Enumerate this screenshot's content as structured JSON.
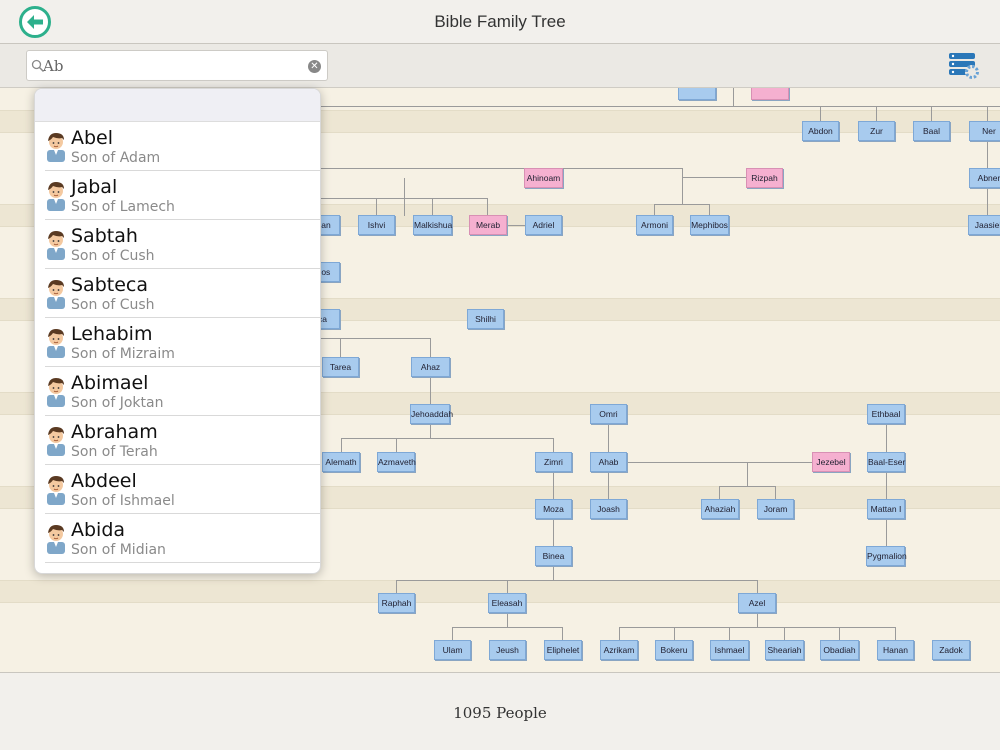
{
  "nav": {
    "title": "Bible Family Tree"
  },
  "search": {
    "value": "Ab"
  },
  "results": [
    {
      "name": "Abel",
      "sub": "Son of Adam"
    },
    {
      "name": "Jabal",
      "sub": "Son of Lamech"
    },
    {
      "name": "Sabtah",
      "sub": "Son of Cush"
    },
    {
      "name": "Sabteca",
      "sub": "Son of Cush"
    },
    {
      "name": "Lehabim",
      "sub": "Son of Mizraim"
    },
    {
      "name": "Abimael",
      "sub": "Son of Joktan"
    },
    {
      "name": "Abraham",
      "sub": "Son of Terah"
    },
    {
      "name": "Abdeel",
      "sub": "Son of Ishmael"
    },
    {
      "name": "Abida",
      "sub": "Son of Midian"
    }
  ],
  "tree_nodes": [
    {
      "label": "Abdon",
      "female": false
    },
    {
      "label": "Zur",
      "female": false
    },
    {
      "label": "Baal",
      "female": false
    },
    {
      "label": "Ner",
      "female": false
    },
    {
      "label": "Ahinoam",
      "female": true
    },
    {
      "label": "Rizpah",
      "female": true
    },
    {
      "label": "Abner",
      "female": false
    },
    {
      "label": "than",
      "female": false
    },
    {
      "label": "Ishvi",
      "female": false
    },
    {
      "label": "Malkishua",
      "female": false
    },
    {
      "label": "Merab",
      "female": true
    },
    {
      "label": "Adriel",
      "female": false
    },
    {
      "label": "Armoni",
      "female": false
    },
    {
      "label": "Mephibos",
      "female": false
    },
    {
      "label": "Jaasiel",
      "female": false
    },
    {
      "label": "ibos",
      "female": false
    },
    {
      "label": "ca",
      "female": false
    },
    {
      "label": "Shilhi",
      "female": false
    },
    {
      "label": "Tarea",
      "female": false
    },
    {
      "label": "Ahaz",
      "female": false
    },
    {
      "label": "Jehoaddah",
      "female": false
    },
    {
      "label": "Omri",
      "female": false
    },
    {
      "label": "Ethbaal",
      "female": false
    },
    {
      "label": "Alemath",
      "female": false
    },
    {
      "label": "Azmaveth",
      "female": false
    },
    {
      "label": "Zimri",
      "female": false
    },
    {
      "label": "Ahab",
      "female": false
    },
    {
      "label": "Jezebel",
      "female": true
    },
    {
      "label": "Baal-Eser",
      "female": false
    },
    {
      "label": "Moza",
      "female": false
    },
    {
      "label": "Joash",
      "female": false
    },
    {
      "label": "Ahaziah",
      "female": false
    },
    {
      "label": "Joram",
      "female": false
    },
    {
      "label": "Mattan I",
      "female": false
    },
    {
      "label": "Binea",
      "female": false
    },
    {
      "label": "Pygmalion",
      "female": false
    },
    {
      "label": "Raphah",
      "female": false
    },
    {
      "label": "Eleasah",
      "female": false
    },
    {
      "label": "Azel",
      "female": false
    },
    {
      "label": "Ulam",
      "female": false
    },
    {
      "label": "Jeush",
      "female": false
    },
    {
      "label": "Eliphelet",
      "female": false
    },
    {
      "label": "Azrikam",
      "female": false
    },
    {
      "label": "Bokeru",
      "female": false
    },
    {
      "label": "Ishmael",
      "female": false
    },
    {
      "label": "Sheariah",
      "female": false
    },
    {
      "label": "Obadiah",
      "female": false
    },
    {
      "label": "Hanan",
      "female": false
    },
    {
      "label": "Zadok",
      "female": false
    }
  ],
  "footer": {
    "count_text": "1095 People"
  },
  "colors": {
    "accent": "#2db08c",
    "male_node": "#a8cbee",
    "female_node": "#f5b0d0"
  },
  "icons": {
    "back": "back-arrow-icon",
    "settings": "database-gear-icon",
    "search": "search-icon",
    "clear": "clear-icon"
  }
}
